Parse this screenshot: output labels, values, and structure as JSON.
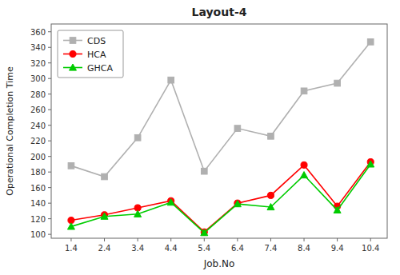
{
  "chart_data": {
    "type": "line",
    "title": "Layout-4",
    "xlabel": "Job.No",
    "ylabel": "Operational Completion Time",
    "x": [
      1.4,
      2.4,
      3.4,
      4.4,
      5.4,
      6.4,
      7.4,
      8.4,
      9.4,
      10.4
    ],
    "series": [
      {
        "name": "CDS",
        "color": "#b0b0b0",
        "marker": "square",
        "values": [
          188,
          174,
          224,
          298,
          181,
          236,
          226,
          284,
          294,
          347
        ]
      },
      {
        "name": "HCA",
        "color": "#ff0000",
        "marker": "circle",
        "values": [
          118,
          125,
          134,
          143,
          103,
          140,
          150,
          189,
          136,
          193
        ]
      },
      {
        "name": "GHCA",
        "color": "#00cc00",
        "marker": "triangle",
        "values": [
          110,
          123,
          126,
          141,
          102,
          139,
          135,
          176,
          131,
          190
        ]
      }
    ],
    "xlim": [
      0.8,
      10.9
    ],
    "xticks": [
      1.4,
      2.4,
      3.4,
      4.4,
      5.4,
      6.4,
      7.4,
      8.4,
      9.4,
      10.4
    ],
    "ylim": [
      95,
      370
    ],
    "yticks": [
      100,
      120,
      140,
      160,
      180,
      200,
      220,
      240,
      260,
      280,
      300,
      320,
      340,
      360
    ],
    "grid": false,
    "legend": "upper left"
  }
}
